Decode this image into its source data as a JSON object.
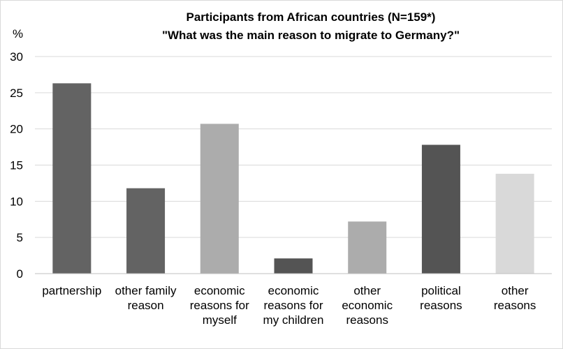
{
  "chart_data": {
    "type": "bar",
    "title": "Participants from African countries (N=159*)",
    "subtitle": "\"What was the main reason to migrate to Germany?\"",
    "ylabel": "%",
    "ylim": [
      0,
      30
    ],
    "yticks": [
      0,
      5,
      10,
      15,
      20,
      25,
      30
    ],
    "grid": true,
    "categories": [
      [
        "partnership"
      ],
      [
        "other family",
        "reason"
      ],
      [
        "economic",
        "reasons for",
        "myself"
      ],
      [
        "economic",
        "reasons for",
        "my children"
      ],
      [
        "other",
        "economic",
        "reasons"
      ],
      [
        "political",
        "reasons"
      ],
      [
        "other",
        "reasons"
      ]
    ],
    "values": [
      26.3,
      11.8,
      20.7,
      2.1,
      7.2,
      17.8,
      13.8
    ],
    "colors": [
      "#636363",
      "#636363",
      "#acacac",
      "#545454",
      "#acacac",
      "#545454",
      "#d9d9d9"
    ]
  }
}
